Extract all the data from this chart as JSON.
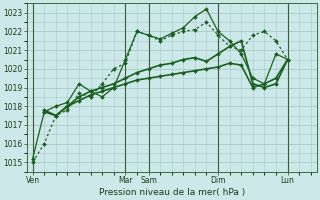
{
  "xlabel": "Pression niveau de la mer( hPa )",
  "ylim": [
    1014.5,
    1023.5
  ],
  "yticks": [
    1015,
    1016,
    1017,
    1018,
    1019,
    1020,
    1021,
    1022,
    1023
  ],
  "xtick_labels": [
    "Ven",
    "Mar",
    "Sam",
    "Dim",
    "Lun"
  ],
  "xtick_positions": [
    0,
    8,
    10,
    16,
    22
  ],
  "xlim": [
    -0.5,
    24.5
  ],
  "bg_color": "#cde8e8",
  "grid_color": "#a8c8c8",
  "line_color": "#1a6020",
  "vline_positions": [
    0,
    8,
    10,
    16,
    22
  ],
  "series": [
    {
      "x": [
        0,
        1,
        2,
        3,
        4,
        5,
        6,
        7,
        8,
        9,
        10,
        11,
        12,
        13,
        14,
        15,
        16,
        17,
        18,
        19,
        20,
        21,
        22
      ],
      "y": [
        1015.0,
        1016.0,
        1017.5,
        1017.8,
        1018.7,
        1018.5,
        1019.2,
        1020.0,
        1020.3,
        1022.0,
        1021.8,
        1021.5,
        1021.8,
        1022.0,
        1022.1,
        1022.5,
        1021.8,
        1021.2,
        1021.0,
        1021.8,
        1022.0,
        1021.5,
        1020.5
      ],
      "style": "dotted",
      "lw": 0.9
    },
    {
      "x": [
        0,
        1,
        2,
        3,
        4,
        5,
        6,
        7,
        8,
        9,
        10,
        11,
        12,
        13,
        14,
        15,
        16,
        17,
        18,
        19,
        20,
        21,
        22
      ],
      "y": [
        1015.2,
        1017.7,
        1018.0,
        1018.2,
        1019.2,
        1018.8,
        1018.5,
        1019.0,
        1020.5,
        1022.0,
        1021.8,
        1021.6,
        1021.9,
        1022.2,
        1022.8,
        1023.2,
        1022.0,
        1021.5,
        1020.8,
        1019.5,
        1019.2,
        1020.8,
        1020.5
      ],
      "style": "solid",
      "lw": 0.9
    },
    {
      "x": [
        1,
        2,
        3,
        4,
        5,
        6,
        7,
        8,
        9,
        10,
        11,
        12,
        13,
        14,
        15,
        16,
        17,
        18,
        19,
        20,
        21,
        22
      ],
      "y": [
        1017.7,
        1017.5,
        1018.0,
        1018.5,
        1018.8,
        1019.0,
        1019.2,
        1019.5,
        1019.8,
        1020.0,
        1020.2,
        1020.3,
        1020.5,
        1020.6,
        1020.4,
        1020.8,
        1021.2,
        1021.5,
        1019.2,
        1019.0,
        1019.2,
        1020.5
      ],
      "style": "solid",
      "lw": 1.2
    },
    {
      "x": [
        1,
        2,
        3,
        4,
        5,
        6,
        7,
        8,
        9,
        10,
        11,
        12,
        13,
        14,
        15,
        16,
        17,
        18,
        19,
        20,
        21,
        22
      ],
      "y": [
        1017.8,
        1017.5,
        1018.0,
        1018.3,
        1018.6,
        1018.8,
        1019.0,
        1019.2,
        1019.4,
        1019.5,
        1019.6,
        1019.7,
        1019.8,
        1019.9,
        1020.0,
        1020.1,
        1020.3,
        1020.2,
        1019.0,
        1019.2,
        1019.5,
        1020.5
      ],
      "style": "solid",
      "lw": 1.2
    }
  ],
  "figsize": [
    3.2,
    2.0
  ],
  "dpi": 100
}
